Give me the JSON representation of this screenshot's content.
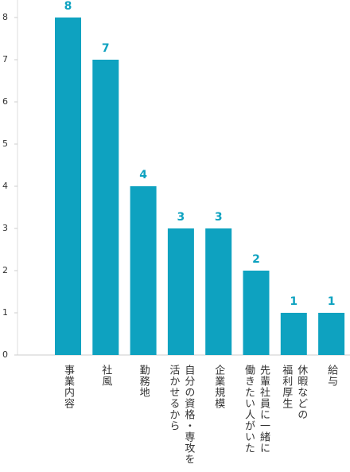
{
  "chart_data": {
    "type": "bar",
    "categories": [
      [
        "事業内容"
      ],
      [
        "社風"
      ],
      [
        "勤務地"
      ],
      [
        "自分の資格・専攻を",
        "活かせるから"
      ],
      [
        "企業規模"
      ],
      [
        "先輩社員に一緒に",
        "働きたい人がいた"
      ],
      [
        "休暇などの",
        "福利厚生"
      ],
      [
        "給与"
      ]
    ],
    "values": [
      8,
      7,
      4,
      3,
      3,
      2,
      1,
      1
    ],
    "color": "#0ea2c0",
    "ylim": [
      0,
      8
    ],
    "yticks": [
      0,
      1,
      2,
      3,
      4,
      5,
      6,
      7,
      8
    ]
  }
}
